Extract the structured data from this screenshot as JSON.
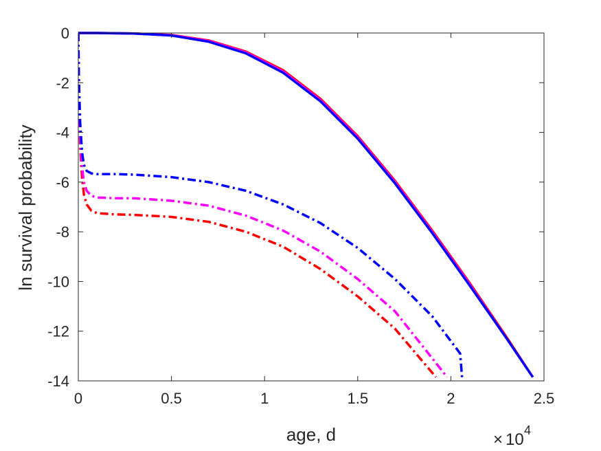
{
  "chart_data": {
    "type": "line",
    "title": "",
    "xlabel": "age, d",
    "ylabel": "ln survival probability",
    "x_multiplier": {
      "base": "10",
      "exponent": "4"
    },
    "xlim": [
      0,
      25000
    ],
    "ylim": [
      -14,
      0
    ],
    "xticks": [
      0,
      5000,
      10000,
      15000,
      20000,
      25000
    ],
    "xtick_labels": [
      "0",
      "0.5",
      "1",
      "1.5",
      "2",
      "2.5"
    ],
    "yticks": [
      0,
      -2,
      -4,
      -6,
      -8,
      -10,
      -12,
      -14
    ],
    "ytick_labels": [
      "0",
      "-2",
      "-4",
      "-6",
      "-8",
      "-10",
      "-12",
      "-14"
    ],
    "grid": false,
    "legend": "none",
    "series": [
      {
        "color": "#ff0000",
        "style": "solid",
        "points": [
          [
            0,
            0
          ],
          [
            1000,
            0
          ],
          [
            3000,
            -0.02
          ],
          [
            5000,
            -0.08
          ],
          [
            7000,
            -0.3
          ],
          [
            9000,
            -0.75
          ],
          [
            11000,
            -1.5
          ],
          [
            13000,
            -2.65
          ],
          [
            15000,
            -4.15
          ],
          [
            17000,
            -5.95
          ],
          [
            19000,
            -7.95
          ],
          [
            21000,
            -10.05
          ],
          [
            23000,
            -12.25
          ],
          [
            24400,
            -13.85
          ]
        ]
      },
      {
        "color": "#ff00ff",
        "style": "solid",
        "points": [
          [
            0,
            0
          ],
          [
            1000,
            0
          ],
          [
            3000,
            -0.02
          ],
          [
            5000,
            -0.09
          ],
          [
            7000,
            -0.32
          ],
          [
            9000,
            -0.78
          ],
          [
            11000,
            -1.55
          ],
          [
            13000,
            -2.7
          ],
          [
            15000,
            -4.2
          ],
          [
            17000,
            -6.0
          ],
          [
            19000,
            -8.0
          ],
          [
            21000,
            -10.1
          ],
          [
            23000,
            -12.3
          ],
          [
            24400,
            -13.85
          ]
        ]
      },
      {
        "color": "#0000ff",
        "style": "solid",
        "points": [
          [
            0,
            0
          ],
          [
            1000,
            0
          ],
          [
            3000,
            -0.02
          ],
          [
            5000,
            -0.1
          ],
          [
            7000,
            -0.35
          ],
          [
            9000,
            -0.82
          ],
          [
            11000,
            -1.6
          ],
          [
            13000,
            -2.75
          ],
          [
            15000,
            -4.25
          ],
          [
            17000,
            -6.05
          ],
          [
            19000,
            -8.05
          ],
          [
            21000,
            -10.15
          ],
          [
            23000,
            -12.3
          ],
          [
            24400,
            -13.85
          ]
        ]
      },
      {
        "color": "#ff0000",
        "style": "dashdot",
        "points": [
          [
            0,
            0
          ],
          [
            30,
            -2.0
          ],
          [
            100,
            -4.6
          ],
          [
            200,
            -5.8
          ],
          [
            300,
            -6.5
          ],
          [
            450,
            -6.9
          ],
          [
            700,
            -7.15
          ],
          [
            1000,
            -7.25
          ],
          [
            2000,
            -7.3
          ],
          [
            3000,
            -7.32
          ],
          [
            5000,
            -7.4
          ],
          [
            7000,
            -7.6
          ],
          [
            9000,
            -8.0
          ],
          [
            11000,
            -8.6
          ],
          [
            13000,
            -9.5
          ],
          [
            15000,
            -10.6
          ],
          [
            17000,
            -11.9
          ],
          [
            19200,
            -13.85
          ]
        ]
      },
      {
        "color": "#ff00ff",
        "style": "dashdot",
        "points": [
          [
            0,
            0
          ],
          [
            30,
            -2.0
          ],
          [
            100,
            -4.2
          ],
          [
            200,
            -5.4
          ],
          [
            300,
            -6.0
          ],
          [
            450,
            -6.35
          ],
          [
            700,
            -6.55
          ],
          [
            1000,
            -6.62
          ],
          [
            2000,
            -6.65
          ],
          [
            3000,
            -6.65
          ],
          [
            5000,
            -6.75
          ],
          [
            7000,
            -6.95
          ],
          [
            9000,
            -7.35
          ],
          [
            11000,
            -7.95
          ],
          [
            13000,
            -8.8
          ],
          [
            15000,
            -9.9
          ],
          [
            17000,
            -11.2
          ],
          [
            19800,
            -13.85
          ]
        ]
      },
      {
        "color": "#0000ff",
        "style": "dashdot",
        "points": [
          [
            0,
            0
          ],
          [
            30,
            -1.8
          ],
          [
            100,
            -3.6
          ],
          [
            200,
            -4.8
          ],
          [
            300,
            -5.3
          ],
          [
            450,
            -5.55
          ],
          [
            700,
            -5.65
          ],
          [
            1000,
            -5.68
          ],
          [
            2000,
            -5.68
          ],
          [
            3000,
            -5.7
          ],
          [
            5000,
            -5.8
          ],
          [
            7000,
            -6.0
          ],
          [
            9000,
            -6.35
          ],
          [
            11000,
            -6.9
          ],
          [
            13000,
            -7.65
          ],
          [
            15000,
            -8.65
          ],
          [
            17000,
            -9.9
          ],
          [
            19000,
            -11.4
          ],
          [
            20500,
            -12.9
          ],
          [
            20600,
            -13.85
          ]
        ]
      }
    ]
  }
}
